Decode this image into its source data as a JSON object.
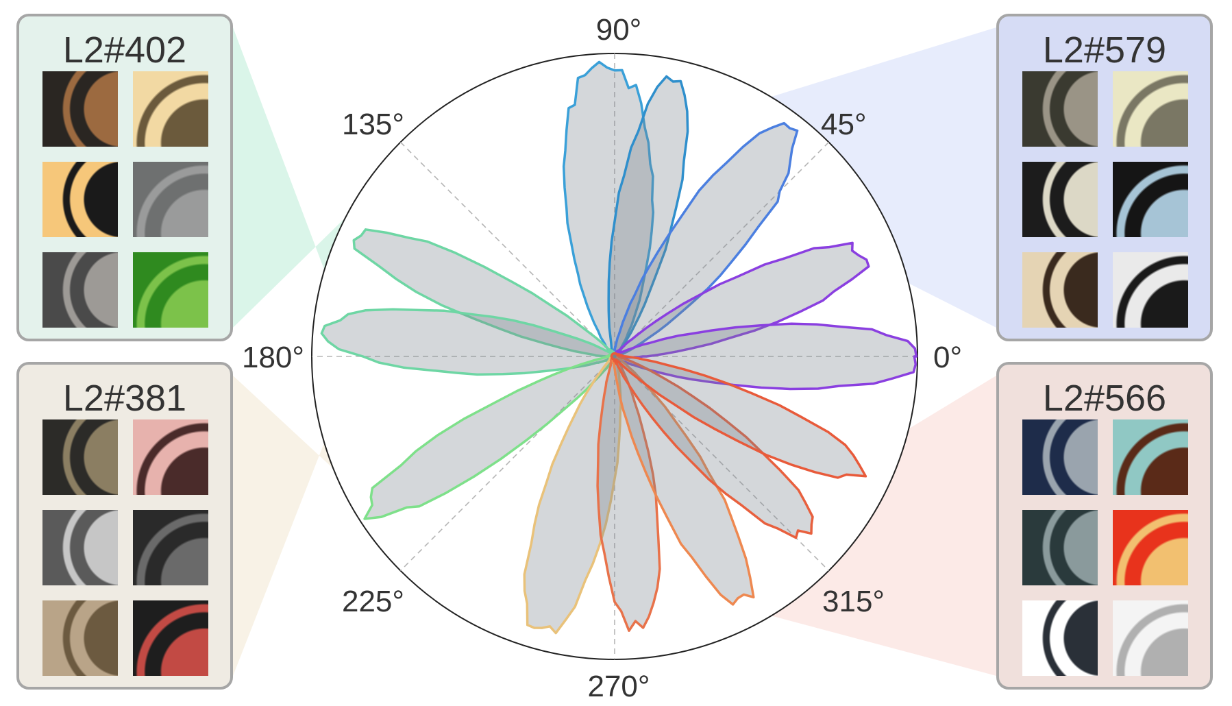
{
  "chart_data": {
    "type": "polar-area",
    "title": "",
    "angle_ticks": [
      "0°",
      "45°",
      "90°",
      "135°",
      "180°",
      "225°",
      "270°",
      "315°"
    ],
    "angle_tick_values": [
      0,
      45,
      90,
      135,
      180,
      225,
      270,
      315
    ],
    "radial_range": [
      0,
      1
    ],
    "grid": "dashed diagonal/axis lines",
    "series": [
      {
        "color": "#3aa0d8",
        "peak_angle": 92,
        "peak_value": 0.95,
        "width_deg": 20
      },
      {
        "color": "#2f8fcc",
        "peak_angle": 78,
        "peak_value": 0.9,
        "width_deg": 14
      },
      {
        "color": "#4b7fe0",
        "peak_angle": 52,
        "peak_value": 0.93,
        "width_deg": 16
      },
      {
        "color": "#8a3fe0",
        "peak_angle": 22,
        "peak_value": 0.88,
        "width_deg": 14
      },
      {
        "color": "#8a3fe0",
        "peak_angle": 0,
        "peak_value": 0.99,
        "width_deg": 14
      },
      {
        "color": "#6ed6a4",
        "peak_angle": 155,
        "peak_value": 0.93,
        "width_deg": 12
      },
      {
        "color": "#6ed6a4",
        "peak_angle": 175,
        "peak_value": 0.95,
        "width_deg": 14
      },
      {
        "color": "#7ee08a",
        "peak_angle": 212,
        "peak_value": 0.95,
        "width_deg": 12
      },
      {
        "color": "#e9c27a",
        "peak_angle": 255,
        "peak_value": 0.92,
        "width_deg": 16
      },
      {
        "color": "#e8724a",
        "peak_angle": 275,
        "peak_value": 0.88,
        "width_deg": 14
      },
      {
        "color": "#ee8850",
        "peak_angle": 298,
        "peak_value": 0.9,
        "width_deg": 14
      },
      {
        "color": "#e8603e",
        "peak_angle": 318,
        "peak_value": 0.85,
        "width_deg": 14
      },
      {
        "color": "#e85a3a",
        "peak_angle": 335,
        "peak_value": 0.88,
        "width_deg": 12
      }
    ]
  },
  "panels": [
    {
      "title": "L2#402",
      "bg": "#e4f2ec",
      "side": "left",
      "sector": [
        120,
        165
      ],
      "wedge_color": "#cdf2e2"
    },
    {
      "title": "L2#381",
      "bg": "#efebe3",
      "side": "left",
      "sector": [
        195,
        250
      ],
      "wedge_color": "#f5eedd"
    },
    {
      "title": "L2#579",
      "bg": "#d6dcf5",
      "side": "right",
      "sector": [
        15,
        60
      ],
      "wedge_color": "#dfe5fb"
    },
    {
      "title": "L2#566",
      "bg": "#f0e0dc",
      "side": "right",
      "sector": [
        300,
        345
      ],
      "wedge_color": "#fbe3df"
    }
  ],
  "thumbnails": {
    "p402": [
      [
        "#2a2622",
        "#9c6a40"
      ],
      [
        "#f2d9a3",
        "#6b5a3c"
      ],
      [
        "#f6c77a",
        "#1a1a1a"
      ],
      [
        "#6e7070",
        "#9a9b9b"
      ],
      [
        "#4a4a4a",
        "#9d9a96"
      ],
      [
        "#2f8a1f",
        "#7cc24a"
      ]
    ],
    "p381": [
      [
        "#2c2b28",
        "#8b7e62"
      ],
      [
        "#e7b2ad",
        "#4a2b2a"
      ],
      [
        "#5a5a5a",
        "#c6c6c6"
      ],
      [
        "#2a2a2a",
        "#6a6a6a"
      ],
      [
        "#b9a488",
        "#6c5a40"
      ],
      [
        "#1e1e1e",
        "#c24a44"
      ]
    ],
    "p579": [
      [
        "#3a3a30",
        "#9a9486"
      ],
      [
        "#eae7c4",
        "#7a7764"
      ],
      [
        "#1c1c1c",
        "#dcd8c6"
      ],
      [
        "#151515",
        "#a6c4d6"
      ],
      [
        "#e5d4b4",
        "#3a2a1e"
      ],
      [
        "#eaeaea",
        "#1a1a1a"
      ]
    ],
    "p566": [
      [
        "#1e2c4a",
        "#9aa4ae"
      ],
      [
        "#90c8c4",
        "#5a2a18"
      ],
      [
        "#2a3a3c",
        "#8a9a9c"
      ],
      [
        "#e8331c",
        "#f2c070"
      ],
      [
        "#ffffff",
        "#2a3038"
      ],
      [
        "#f4f4f4",
        "#b0b0b0"
      ]
    ]
  }
}
